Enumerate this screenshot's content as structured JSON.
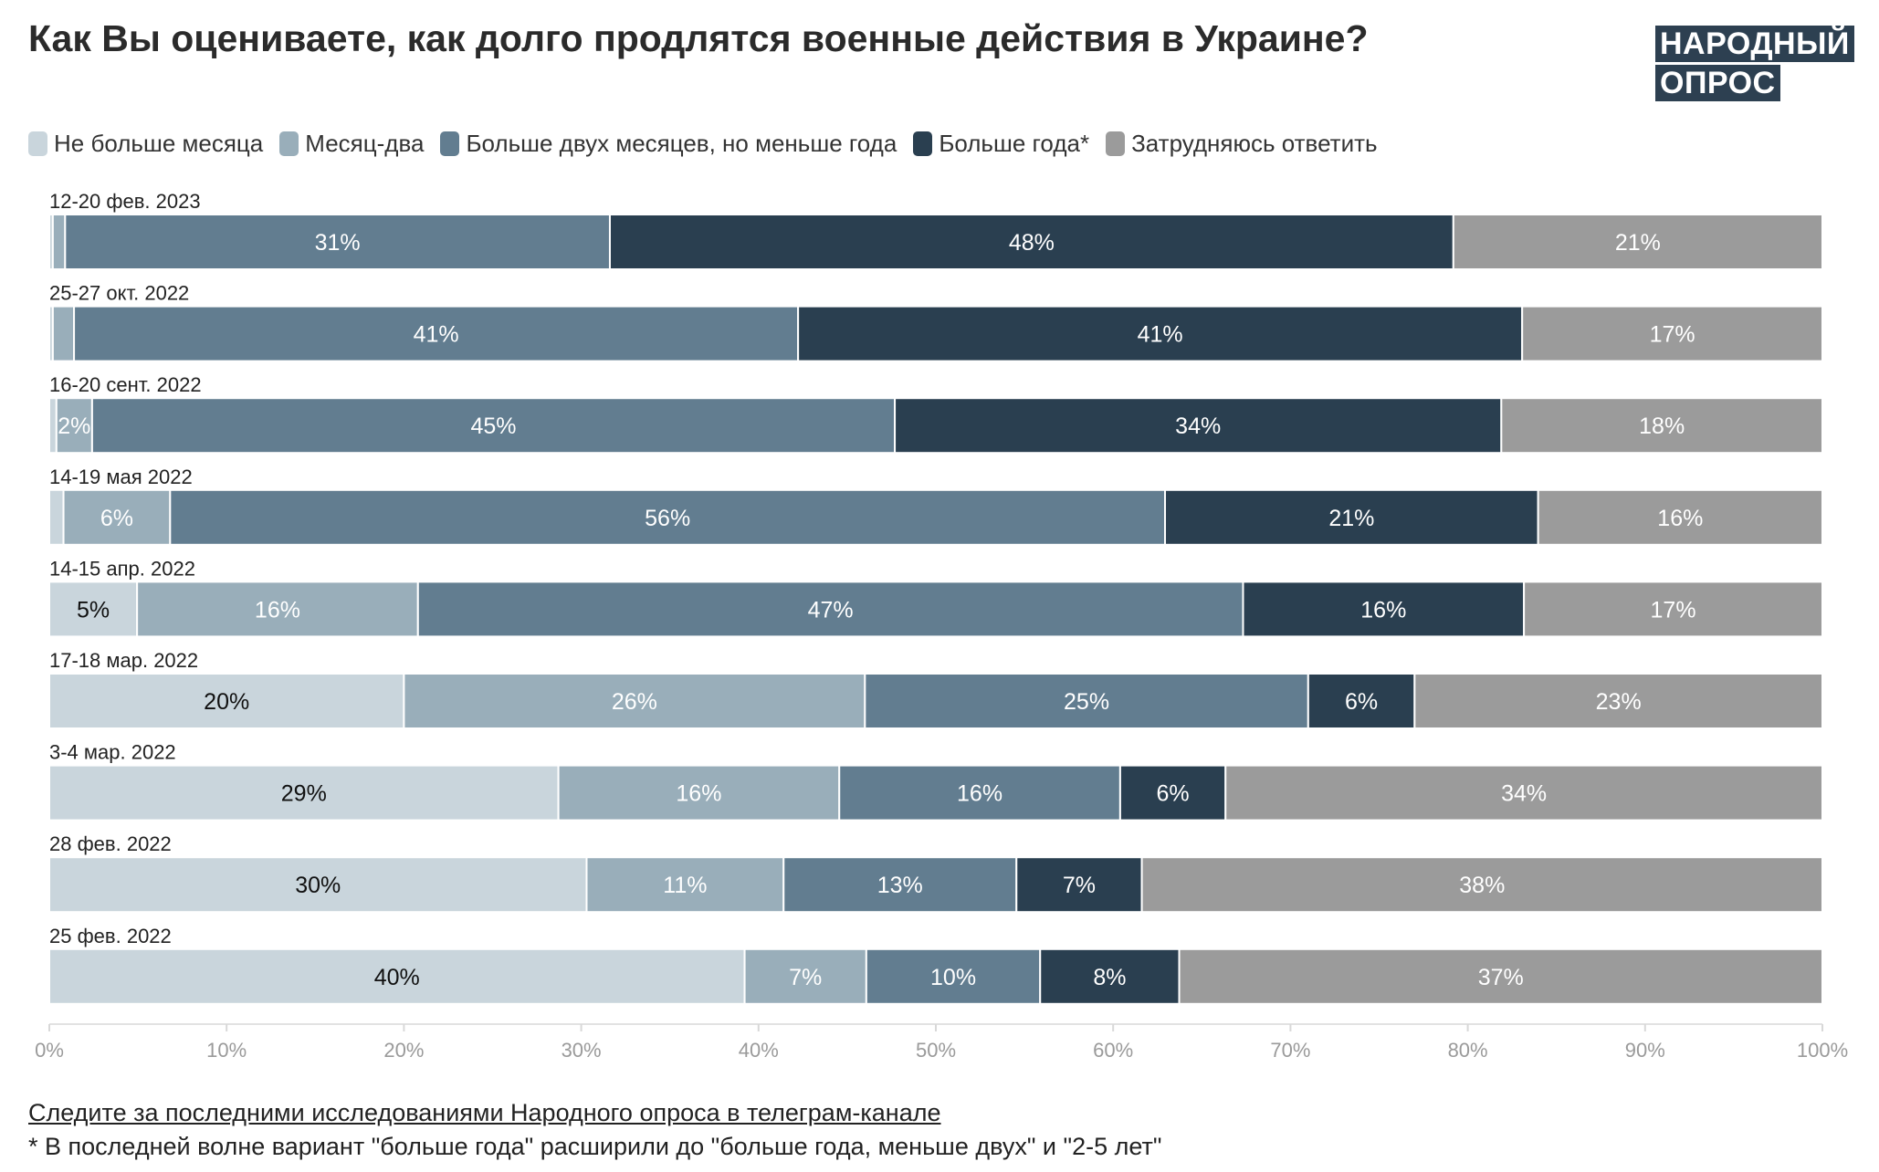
{
  "title": "Как Вы оцениваете, как долго продлятся военные действия в Украине?",
  "logo": {
    "line1": "НАРОДНЫЙ",
    "line2": "ОПРОС"
  },
  "footer": {
    "link_text": "Следите за последними исследованиями Народного опроса в телеграм-канале",
    "note": "* В последней волне вариант \"больше года\" расширили до \"больше года, меньше двух\" и \"2-5 лет\""
  },
  "chart_data": {
    "type": "bar",
    "orientation": "horizontal",
    "stacked": true,
    "title": "Как Вы оцениваете, как долго продлятся военные действия в Украине?",
    "xlim": [
      0,
      100
    ],
    "xticks": [
      "0%",
      "10%",
      "20%",
      "30%",
      "40%",
      "50%",
      "60%",
      "70%",
      "80%",
      "90%",
      "100%"
    ],
    "legend_position": "top-left",
    "series": [
      {
        "name": "Не больше месяца",
        "color": "#c9d5dc",
        "label_color": "#111111"
      },
      {
        "name": "Месяц-два",
        "color": "#99aeba",
        "label_color": "#ffffff"
      },
      {
        "name": "Больше двух месяцев, но меньше года",
        "color": "#627d90",
        "label_color": "#ffffff"
      },
      {
        "name": "Больше года*",
        "color": "#2a3f50",
        "label_color": "#ffffff"
      },
      {
        "name": "Затрудняюсь ответить",
        "color": "#9b9b9b",
        "label_color": "#ffffff"
      }
    ],
    "categories": [
      {
        "label": "12-20 фев. 2023",
        "values": [
          0.2,
          0.7,
          31,
          48,
          21
        ],
        "labels": [
          "",
          "",
          "31%",
          "48%",
          "21%"
        ]
      },
      {
        "label": "25-27 окт. 2022",
        "values": [
          0.2,
          1.2,
          41,
          41,
          17
        ],
        "labels": [
          "",
          "",
          "41%",
          "41%",
          "17%"
        ]
      },
      {
        "label": "16-20 сент. 2022",
        "values": [
          0.4,
          2,
          45,
          34,
          18
        ],
        "labels": [
          "",
          "2%",
          "45%",
          "34%",
          "18%"
        ]
      },
      {
        "label": "14-19 мая 2022",
        "values": [
          0.8,
          6,
          56,
          21,
          16
        ],
        "labels": [
          "",
          "6%",
          "56%",
          "21%",
          "16%"
        ]
      },
      {
        "label": "14-15 апр. 2022",
        "values": [
          5,
          16,
          47,
          16,
          17
        ],
        "labels": [
          "5%",
          "16%",
          "47%",
          "16%",
          "17%"
        ]
      },
      {
        "label": "17-18 мар. 2022",
        "values": [
          20,
          26,
          25,
          6,
          23
        ],
        "labels": [
          "20%",
          "26%",
          "25%",
          "6%",
          "23%"
        ]
      },
      {
        "label": "3-4 мар. 2022",
        "values": [
          29,
          16,
          16,
          6,
          34
        ],
        "labels": [
          "29%",
          "16%",
          "16%",
          "6%",
          "34%"
        ]
      },
      {
        "label": "28 фев. 2022",
        "values": [
          30,
          11,
          13,
          7,
          38
        ],
        "labels": [
          "30%",
          "11%",
          "13%",
          "7%",
          "38%"
        ]
      },
      {
        "label": "25 фев. 2022",
        "values": [
          40,
          7,
          10,
          8,
          37
        ],
        "labels": [
          "40%",
          "7%",
          "10%",
          "8%",
          "37%"
        ]
      }
    ]
  }
}
